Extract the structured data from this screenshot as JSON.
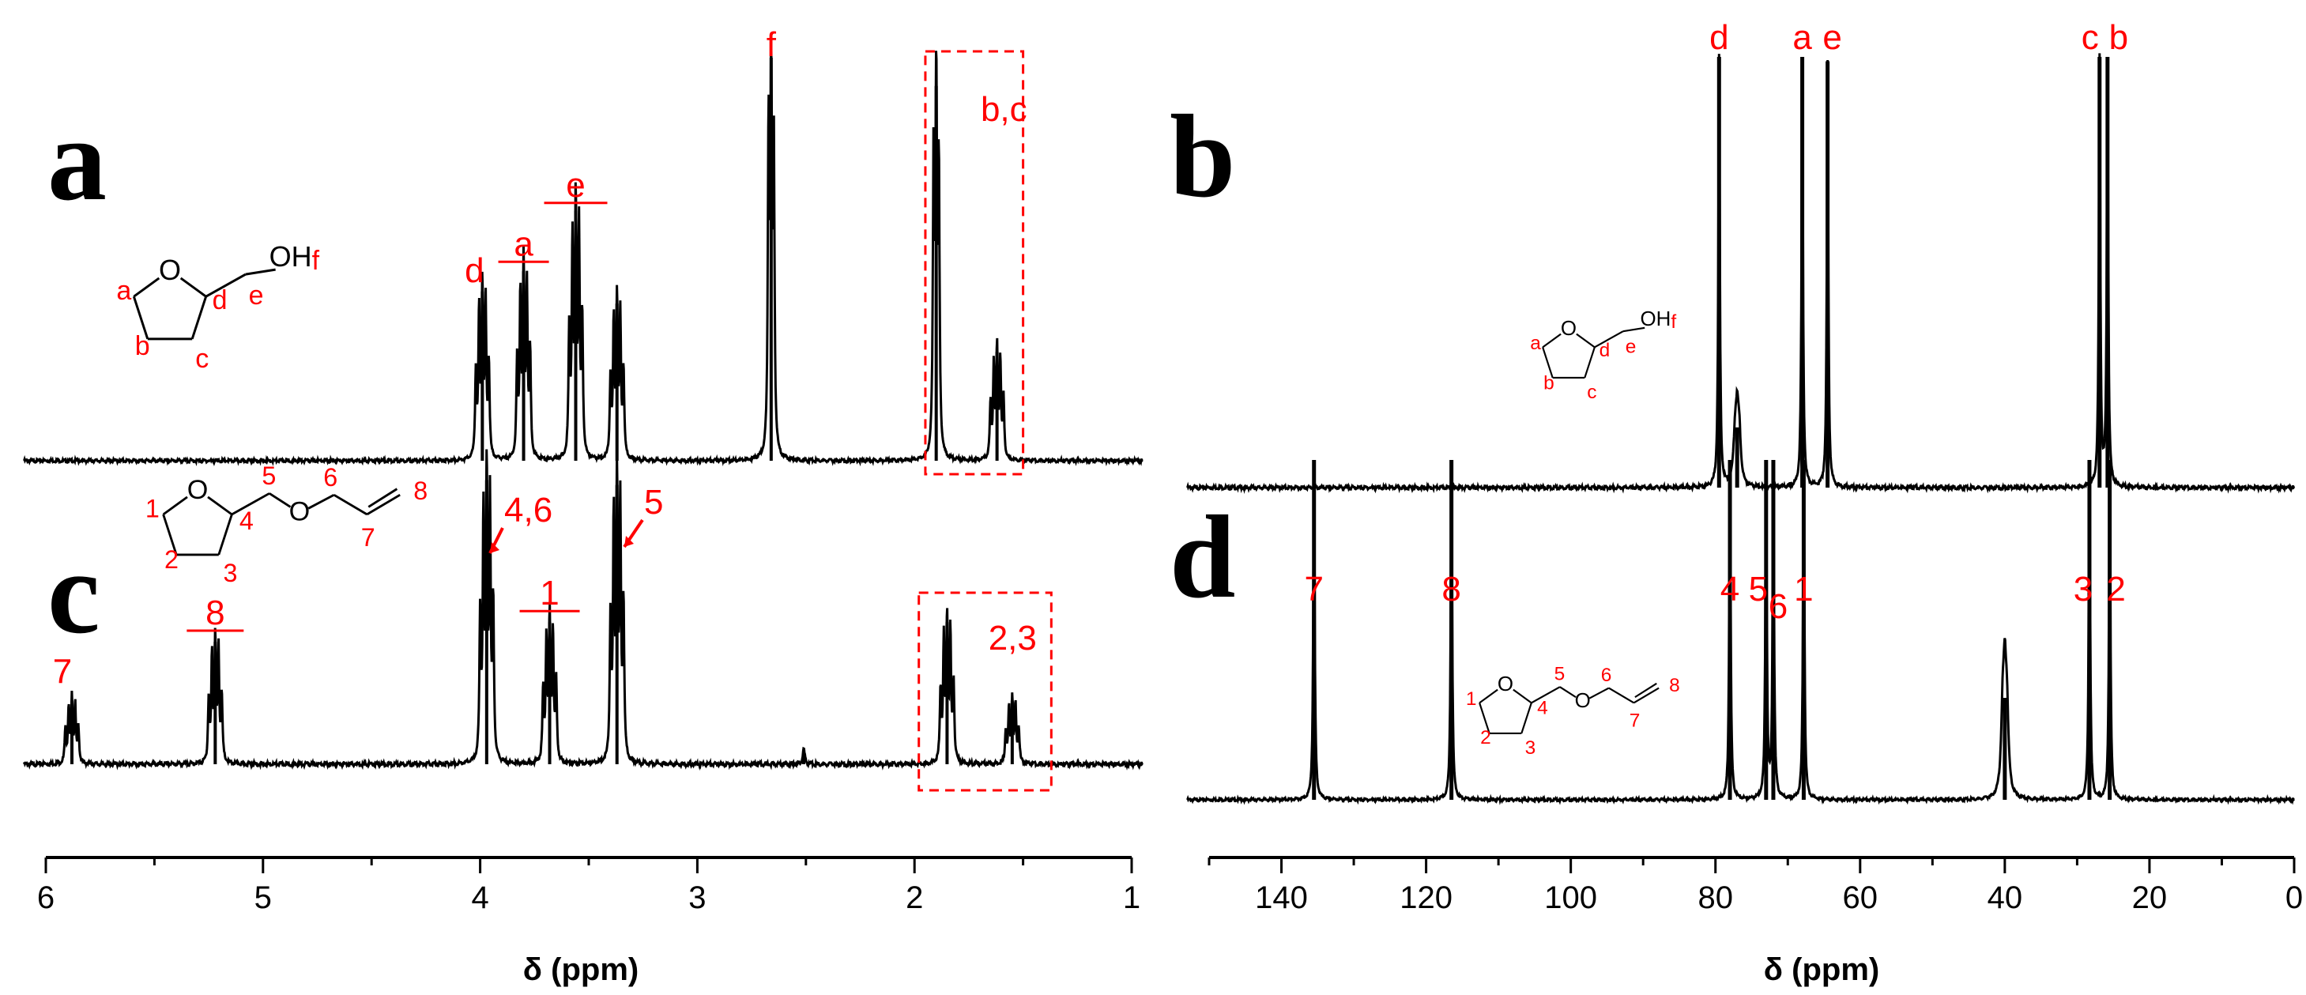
{
  "colors": {
    "spectrum": "#000000",
    "annotation": "#ff0000"
  },
  "chart_data": [
    {
      "type": "line",
      "panel": "a",
      "nucleus": "1H",
      "xlabel": "δ (ppm)",
      "xlim": [
        6,
        1
      ],
      "x_ticks": [
        "6",
        "5",
        "4",
        "3",
        "2",
        "1"
      ],
      "peaks": [
        {
          "x": 3.99,
          "label": "d",
          "height": 0.42
        },
        {
          "x": 3.8,
          "label": "a",
          "height": 0.47
        },
        {
          "x": 3.56,
          "label": "e",
          "height": 0.62
        },
        {
          "x": 3.37,
          "label": "",
          "height": 0.39
        },
        {
          "x": 2.66,
          "label": "f",
          "height": 1.0
        },
        {
          "x": 1.9,
          "label": "b,c",
          "height": 0.93
        },
        {
          "x": 1.62,
          "label": "",
          "height": 0.27
        }
      ],
      "box": {
        "label": "b,c",
        "x_range": [
          1.95,
          1.5
        ]
      },
      "structure": {
        "atoms": [
          "O",
          "OH"
        ],
        "labels": [
          "a",
          "b",
          "c",
          "d",
          "e",
          "f"
        ]
      }
    },
    {
      "type": "line",
      "panel": "b",
      "nucleus": "13C",
      "peaks": [
        {
          "x": 79.5,
          "label": "d",
          "height": 1.0
        },
        {
          "x": 77.0,
          "label": "",
          "height": 0.14
        },
        {
          "x": 68.0,
          "label": "a",
          "height": 1.0
        },
        {
          "x": 64.5,
          "label": "e",
          "height": 0.99
        },
        {
          "x": 26.9,
          "label": "c",
          "height": 1.0
        },
        {
          "x": 25.8,
          "label": "b",
          "height": 1.0
        }
      ],
      "structure": {
        "atoms": [
          "O",
          "OH"
        ],
        "labels": [
          "a",
          "b",
          "c",
          "d",
          "e",
          "f"
        ]
      }
    },
    {
      "type": "line",
      "panel": "c",
      "nucleus": "1H",
      "xlabel": "δ (ppm)",
      "xlim": [
        6,
        1
      ],
      "x_ticks": [
        "6",
        "5",
        "4",
        "3",
        "2",
        "1"
      ],
      "peaks": [
        {
          "x": 5.88,
          "label": "7",
          "height": 0.13
        },
        {
          "x": 5.22,
          "label": "8",
          "height": 0.25
        },
        {
          "x": 3.97,
          "label": "4,6",
          "height": 0.58
        },
        {
          "x": 3.68,
          "label": "1",
          "height": 0.29
        },
        {
          "x": 3.37,
          "label": "5",
          "height": 0.57
        },
        {
          "x": 2.51,
          "label": "",
          "height": 0.03
        },
        {
          "x": 1.85,
          "label": "2,3",
          "height": 0.29
        },
        {
          "x": 1.55,
          "label": "",
          "height": 0.13
        }
      ],
      "box": {
        "label": "2,3",
        "x_range": [
          1.98,
          1.37
        ]
      },
      "structure": {
        "atoms": [
          "O",
          "O"
        ],
        "labels": [
          "1",
          "2",
          "3",
          "4",
          "5",
          "6",
          "7",
          "8"
        ]
      }
    },
    {
      "type": "line",
      "panel": "d",
      "nucleus": "13C",
      "xlabel": "δ (ppm)",
      "xlim": [
        150,
        0
      ],
      "x_ticks": [
        "140",
        "120",
        "100",
        "80",
        "60",
        "40",
        "20",
        "0"
      ],
      "peaks": [
        {
          "x": 135.5,
          "label": "7",
          "height": 1.0
        },
        {
          "x": 116.5,
          "label": "8",
          "height": 1.0
        },
        {
          "x": 78.0,
          "label": "4",
          "height": 1.0
        },
        {
          "x": 73.0,
          "label": "5",
          "height": 1.0
        },
        {
          "x": 72.0,
          "label": "6",
          "height": 1.0
        },
        {
          "x": 67.8,
          "label": "1",
          "height": 1.0
        },
        {
          "x": 40.0,
          "label": "",
          "height": 0.3
        },
        {
          "x": 28.3,
          "label": "3",
          "height": 1.0
        },
        {
          "x": 25.5,
          "label": "2",
          "height": 1.0
        }
      ],
      "structure": {
        "atoms": [
          "O",
          "O"
        ],
        "labels": [
          "1",
          "2",
          "3",
          "4",
          "5",
          "6",
          "7",
          "8"
        ]
      }
    }
  ]
}
